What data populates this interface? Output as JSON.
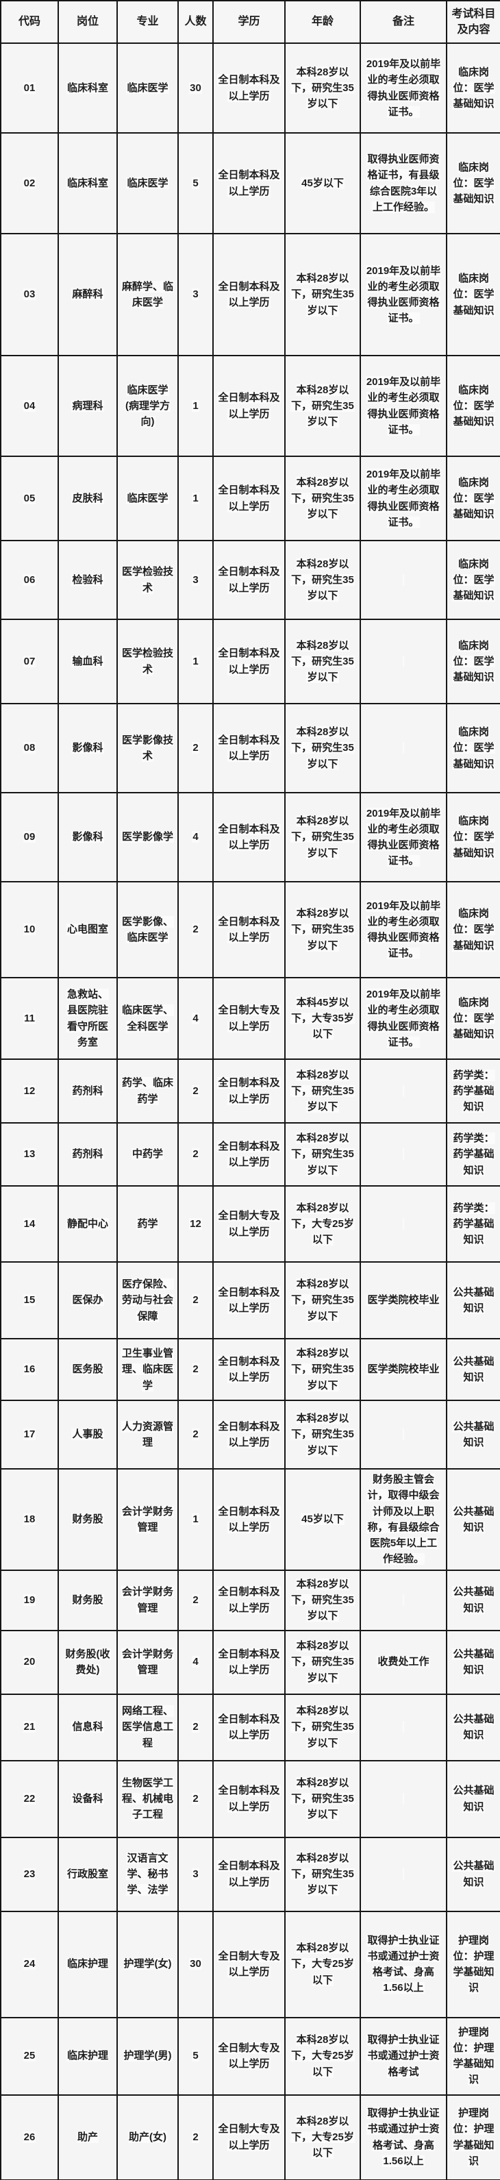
{
  "table": {
    "title_hint": "事业单位招聘岗位表",
    "columns": [
      {
        "key": "code",
        "label": "代码"
      },
      {
        "key": "position",
        "label": "岗位"
      },
      {
        "key": "major",
        "label": "专业"
      },
      {
        "key": "count",
        "label": "人数"
      },
      {
        "key": "education",
        "label": "学历"
      },
      {
        "key": "age",
        "label": "年龄"
      },
      {
        "key": "remark",
        "label": "备注"
      },
      {
        "key": "exam",
        "label": "考试科目及内容"
      }
    ],
    "rows": [
      [
        "01",
        "临床科室",
        "临床医学",
        "30",
        "全日制本科及以上学历",
        "本科28岁以下，研究生35岁以下",
        "2019年及以前毕业的考生必须取得执业医师资格证书。",
        "临床岗位：医学基础知识"
      ],
      [
        "02",
        "临床科室",
        "临床医学",
        "5",
        "全日制本科及以上学历",
        "45岁以下",
        "取得执业医师资格证书，有县级综合医院3年以上工作经验。",
        "临床岗位：医学基础知识"
      ],
      [
        "03",
        "麻醉科",
        "麻醉学、临床医学",
        "3",
        "全日制本科及以上学历",
        "本科28岁以下，研究生35岁以下",
        "2019年及以前毕业的考生必须取得执业医师资格证书。",
        "临床岗位：医学基础知识"
      ],
      [
        "04",
        "病理科",
        "临床医学(病理学方向)",
        "1",
        "全日制本科及以上学历",
        "本科28岁以下，研究生35岁以下",
        "2019年及以前毕业的考生必须取得执业医师资格证书。",
        "临床岗位：医学基础知识"
      ],
      [
        "05",
        "皮肤科",
        "临床医学",
        "1",
        "全日制本科及以上学历",
        "本科28岁以下，研究生35岁以下",
        "2019年及以前毕业的考生必须取得执业医师资格证书。",
        "临床岗位：医学基础知识"
      ],
      [
        "06",
        "检验科",
        "医学检验技术",
        "3",
        "全日制本科及以上学历",
        "本科28岁以下，研究生35岁以下",
        "",
        "临床岗位：医学基础知识"
      ],
      [
        "07",
        "输血科",
        "医学检验技术",
        "1",
        "全日制本科及以上学历",
        "本科28岁以下，研究生35岁以下",
        "",
        "临床岗位：医学基础知识"
      ],
      [
        "08",
        "影像科",
        "医学影像技术",
        "2",
        "全日制本科及以上学历",
        "本科28岁以下，研究生35岁以下",
        "",
        "临床岗位：医学基础知识"
      ],
      [
        "09",
        "影像科",
        "医学影像学",
        "4",
        "全日制本科及以上学历",
        "本科28岁以下，研究生35岁以下",
        "2019年及以前毕业的考生必须取得执业医师资格证书。",
        "临床岗位：医学基础知识"
      ],
      [
        "10",
        "心电图室",
        "医学影像、临床医学",
        "2",
        "全日制本科及以上学历",
        "本科28岁以下，研究生35岁以下",
        "2019年及以前毕业的考生必须取得执业医师资格证书。",
        "临床岗位：医学基础知识"
      ],
      [
        "11",
        "急救站、县医院驻看守所医务室",
        "临床医学、全科医学",
        "4",
        "全日制大专及以上学历",
        "本科45岁以下，大专35岁以下",
        "2019年及以前毕业的考生必须取得执业医师资格证书。",
        "临床岗位：医学基础知识"
      ],
      [
        "12",
        "药剂科",
        "药学、临床药学",
        "2",
        "全日制本科及以上学历",
        "本科28岁以下，研究生35岁以下",
        "",
        "药学类：药学基础知识"
      ],
      [
        "13",
        "药剂科",
        "中药学",
        "2",
        "全日制本科及以上学历",
        "本科28岁以下，研究生35岁以下",
        "",
        "药学类：药学基础知识"
      ],
      [
        "14",
        "静配中心",
        "药学",
        "12",
        "全日制大专及以上学历",
        "本科28岁以下，大专25岁以下",
        "",
        "药学类：药学基础知识"
      ],
      [
        "15",
        "医保办",
        "医疗保险、劳动与社会保障",
        "2",
        "全日制本科及以上学历",
        "本科28岁以下，研究生35岁以下",
        "医学类院校毕业",
        "公共基础知识"
      ],
      [
        "16",
        "医务股",
        "卫生事业管理、临床医学",
        "2",
        "全日制本科及以上学历",
        "本科28岁以下，研究生35岁以下",
        "医学类院校毕业",
        "公共基础知识"
      ],
      [
        "17",
        "人事股",
        "人力资源管理",
        "2",
        "全日制本科及以上学历",
        "本科28岁以下，研究生35岁以下",
        "",
        "公共基础知识"
      ],
      [
        "18",
        "财务股",
        "会计学财务管理",
        "1",
        "全日制本科及以上学历",
        "45岁以下",
        "财务股主管会计，取得中级会计师及以上职称，有县级综合医院5年以上工作经验。",
        "公共基础知识"
      ],
      [
        "19",
        "财务股",
        "会计学财务管理",
        "2",
        "全日制本科及以上学历",
        "本科28岁以下，研究生35岁以下",
        "",
        "公共基础知识"
      ],
      [
        "20",
        "财务股(收费处)",
        "会计学财务管理",
        "4",
        "全日制本科及以上学历",
        "本科28岁以下，研究生35岁以下",
        "收费处工作",
        "公共基础知识"
      ],
      [
        "21",
        "信息科",
        "网络工程、医学信息工程",
        "2",
        "全日制本科及以上学历",
        "本科28岁以下，研究生35岁以下",
        "",
        "公共基础知识"
      ],
      [
        "22",
        "设备科",
        "生物医学工程、机械电子工程",
        "2",
        "全日制本科及以上学历",
        "本科28岁以下，研究生35岁以下",
        "",
        "公共基础知识"
      ],
      [
        "23",
        "行政股室",
        "汉语言文学、秘书学、法学",
        "3",
        "全日制本科及以上学历",
        "本科28岁以下，研究生35岁以下",
        "",
        "公共基础知识"
      ],
      [
        "24",
        "临床护理",
        "护理学(女)",
        "30",
        "全日制大专及以上学历",
        "本科28岁以下，大专25岁以下",
        "取得护士执业证书或通过护士资格考试、身高1.56以上",
        "护理岗位：护理学基础知识"
      ],
      [
        "25",
        "临床护理",
        "护理学(男)",
        "5",
        "全日制大专及以上学历",
        "本科28岁以下，大专25岁以下",
        "取得护士执业证书或通过护士资格考试",
        "护理岗位：护理学基础知识"
      ],
      [
        "26",
        "助产",
        "助产(女)",
        "2",
        "全日制大专及以上学历",
        "本科28岁以下，大专25岁以下",
        "取得护士执业证书或通过护士资格考试、身高1.56以上",
        "护理岗位：护理学基础知识"
      ]
    ]
  },
  "colors": {
    "border": "#161616",
    "text": "#1e1e1e",
    "cell_background": "#f5f5f5",
    "page_background": "#f3f3f3"
  }
}
